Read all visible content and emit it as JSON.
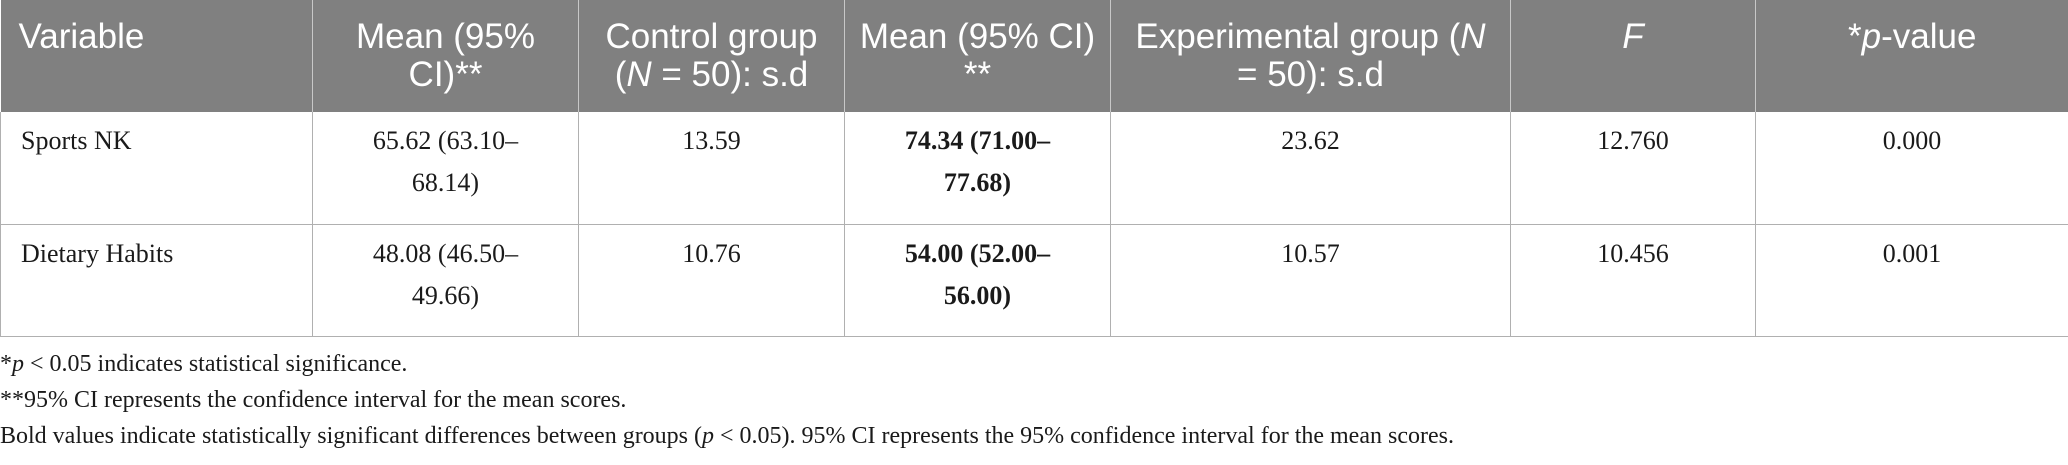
{
  "table": {
    "headers": [
      {
        "pre": "Variable"
      },
      {
        "pre": "Mean (95% CI)**"
      },
      {
        "pre": "Control group (",
        "italic": "N",
        "post": " = 50): s.d"
      },
      {
        "pre": "Mean (95% CI) **"
      },
      {
        "pre": "Experimental group (",
        "italic": "N",
        "post": " = 50): s.d"
      },
      {
        "pre": "",
        "italic": "F",
        "post": ""
      },
      {
        "pre": "*",
        "italic": "p",
        "post": "-value"
      }
    ],
    "rows": [
      {
        "variable": "Sports NK",
        "control_mean": "65.62 (63.10–68.14)",
        "control_sd": "13.59",
        "experimental_mean": "74.34 (71.00–77.68)",
        "experimental_sd": "23.62",
        "f": "12.760",
        "p_value": "0.000"
      },
      {
        "variable": "Dietary Habits",
        "control_mean": "48.08 (46.50–49.66)",
        "control_sd": "10.76",
        "experimental_mean": "54.00 (52.00–56.00)",
        "experimental_sd": "10.57",
        "f": "10.456",
        "p_value": "0.001"
      }
    ]
  },
  "notes": {
    "note1": {
      "pre": "*",
      "italic": "p",
      "post": " < 0.05 indicates statistical significance."
    },
    "note2": "**95% CI represents the confidence interval for the mean scores.",
    "note3": {
      "pre": "Bold values indicate statistically significant differences between groups (",
      "italic": "p",
      "post": " < 0.05). 95% CI represents the 95% confidence interval for the mean scores."
    }
  },
  "colors": {
    "header_bg": "#808080",
    "header_text": "#ffffff",
    "border": "#b0b0b0"
  }
}
